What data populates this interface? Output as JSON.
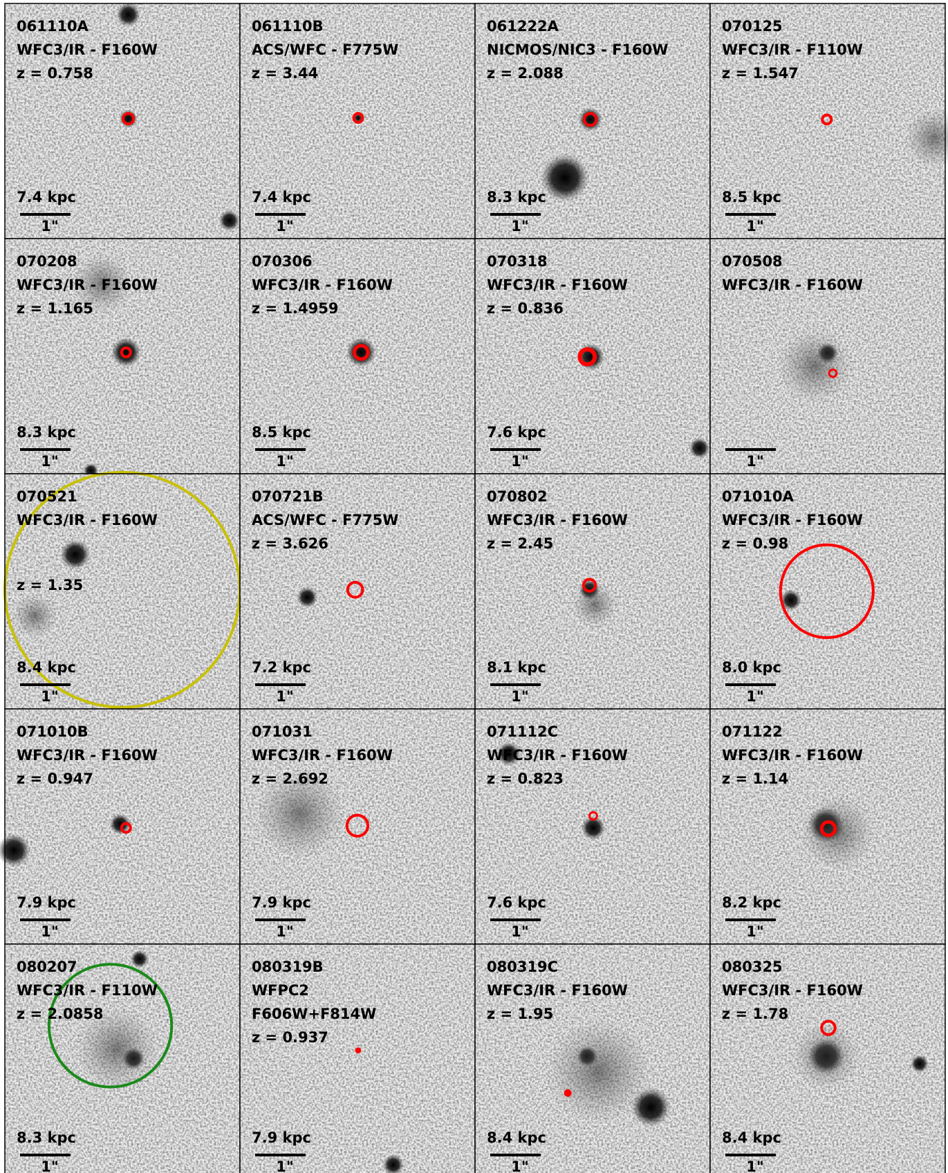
{
  "panels": [
    {
      "id": "061110A",
      "lines": [
        "WFC3/IR - F160W",
        "z = 0.758"
      ],
      "kpc": "7.4 kpc",
      "scale": "1\""
    },
    {
      "id": "061110B",
      "lines": [
        "ACS/WFC - F775W",
        "z = 3.44"
      ],
      "kpc": "7.4 kpc",
      "scale": "1\""
    },
    {
      "id": "061222A",
      "lines": [
        "NICMOS/NIC3 - F160W",
        "z = 2.088"
      ],
      "kpc": "8.3 kpc",
      "scale": "1\""
    },
    {
      "id": "070125",
      "lines": [
        "WFC3/IR - F110W",
        "z = 1.547"
      ],
      "kpc": "8.5 kpc",
      "scale": "1\""
    },
    {
      "id": "070208",
      "lines": [
        "WFC3/IR - F160W",
        "z = 1.165"
      ],
      "kpc": "8.3 kpc",
      "scale": "1\""
    },
    {
      "id": "070306",
      "lines": [
        "WFC3/IR - F160W",
        "z = 1.4959"
      ],
      "kpc": "8.5 kpc",
      "scale": "1\""
    },
    {
      "id": "070318",
      "lines": [
        "WFC3/IR - F160W",
        "z = 0.836"
      ],
      "kpc": "7.6 kpc",
      "scale": "1\""
    },
    {
      "id": "070508",
      "lines": [
        "WFC3/IR - F160W"
      ],
      "scale": "1\""
    },
    {
      "id": "070521",
      "lines": [
        "WFC3/IR - F160W"
      ],
      "note": "z = 1.35",
      "kpc": "8.4 kpc",
      "scale": "1\""
    },
    {
      "id": "070721B",
      "lines": [
        "ACS/WFC - F775W",
        "z = 3.626"
      ],
      "kpc": "7.2 kpc",
      "scale": "1\""
    },
    {
      "id": "070802",
      "lines": [
        "WFC3/IR - F160W",
        "z = 2.45"
      ],
      "kpc": "8.1 kpc",
      "scale": "1\""
    },
    {
      "id": "071010A",
      "lines": [
        "WFC3/IR - F160W",
        "z = 0.98"
      ],
      "kpc": "8.0 kpc",
      "scale": "1\""
    },
    {
      "id": "071010B",
      "lines": [
        "WFC3/IR - F160W",
        "z = 0.947"
      ],
      "kpc": "7.9 kpc",
      "scale": "1\""
    },
    {
      "id": "071031",
      "lines": [
        "WFC3/IR - F160W",
        "z = 2.692"
      ],
      "kpc": "7.9 kpc",
      "scale": "1\""
    },
    {
      "id": "071112C",
      "lines": [
        "WFC3/IR - F160W",
        "z = 0.823"
      ],
      "kpc": "7.6 kpc",
      "scale": "1\""
    },
    {
      "id": "071122",
      "lines": [
        "WFC3/IR - F160W",
        "z = 1.14"
      ],
      "kpc": "8.2 kpc",
      "scale": "1\""
    },
    {
      "id": "080207",
      "lines": [
        "WFC3/IR - F110W",
        "z = 2.0858"
      ],
      "kpc": "8.3 kpc",
      "scale": "1\""
    },
    {
      "id": "080319B",
      "lines": [
        "WFPC2",
        "F606W+F814W",
        "z = 0.937"
      ],
      "kpc": "7.9 kpc",
      "scale": "1\""
    },
    {
      "id": "080319C",
      "lines": [
        "WFC3/IR - F160W",
        "z = 1.95"
      ],
      "kpc": "8.4 kpc",
      "scale": "1\""
    },
    {
      "id": "080325",
      "lines": [
        "WFC3/IR - F160W",
        "z = 1.78"
      ],
      "kpc": "8.4 kpc",
      "scale": "1\""
    }
  ]
}
